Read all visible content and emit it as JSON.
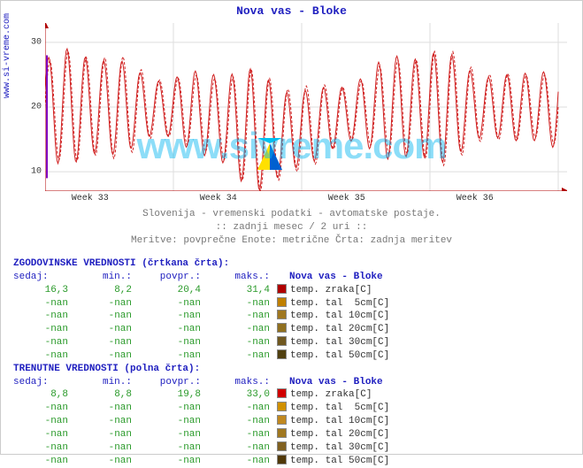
{
  "title": "Nova vas - Bloke",
  "ylabel_link": "www.si-vreme.com",
  "watermark": "www.sivreme.com",
  "subcaption_line1": "Slovenija - vremenski podatki - avtomatske postaje.",
  "subcaption_line2": ":: zadnji mesec / 2 uri ::",
  "subcaption_line3": "Meritve: povprečne  Enote: metrične  Črta: zadnja meritev",
  "chart": {
    "background": "#ffffff",
    "grid_color": "#dddddd",
    "axis_color": "#b00000",
    "series_color": "#d02020",
    "current_marker_color": "#8000c0",
    "ylim": [
      7,
      33
    ],
    "yticks": [
      10,
      20,
      30
    ],
    "xticks": [
      "Week 33",
      "Week 34",
      "Week 35",
      "Week 36"
    ],
    "n_cycles": 28,
    "amp_base": 8.5,
    "mid_base": 20,
    "mid_dip_center": 0.45,
    "mid_dip_depth": 4
  },
  "columns": {
    "sedaj": "sedaj:",
    "min": "min.:",
    "povpr": "povpr.:",
    "maks": "maks.:"
  },
  "hist_header": "ZGODOVINSKE VREDNOSTI (črtkana črta):",
  "hist_station": "Nova vas - Bloke",
  "hist_rows": [
    {
      "sedaj": "16,3",
      "min": "8,2",
      "povpr": "20,4",
      "maks": "31,4",
      "swatch": "#b00000",
      "name": "temp. zraka[C]"
    },
    {
      "sedaj": "-nan",
      "min": "-nan",
      "povpr": "-nan",
      "maks": "-nan",
      "swatch": "#c08000",
      "name": "temp. tal  5cm[C]"
    },
    {
      "sedaj": "-nan",
      "min": "-nan",
      "povpr": "-nan",
      "maks": "-nan",
      "swatch": "#a07820",
      "name": "temp. tal 10cm[C]"
    },
    {
      "sedaj": "-nan",
      "min": "-nan",
      "povpr": "-nan",
      "maks": "-nan",
      "swatch": "#907020",
      "name": "temp. tal 20cm[C]"
    },
    {
      "sedaj": "-nan",
      "min": "-nan",
      "povpr": "-nan",
      "maks": "-nan",
      "swatch": "#705820",
      "name": "temp. tal 30cm[C]"
    },
    {
      "sedaj": "-nan",
      "min": "-nan",
      "povpr": "-nan",
      "maks": "-nan",
      "swatch": "#504010",
      "name": "temp. tal 50cm[C]"
    }
  ],
  "curr_header": "TRENUTNE VREDNOSTI (polna črta):",
  "curr_station": "Nova vas - Bloke",
  "curr_rows": [
    {
      "sedaj": "8,8",
      "min": "8,8",
      "povpr": "19,8",
      "maks": "33,0",
      "swatch": "#d00000",
      "name": "temp. zraka[C]"
    },
    {
      "sedaj": "-nan",
      "min": "-nan",
      "povpr": "-nan",
      "maks": "-nan",
      "swatch": "#d09000",
      "name": "temp. tal  5cm[C]"
    },
    {
      "sedaj": "-nan",
      "min": "-nan",
      "povpr": "-nan",
      "maks": "-nan",
      "swatch": "#c08820",
      "name": "temp. tal 10cm[C]"
    },
    {
      "sedaj": "-nan",
      "min": "-nan",
      "povpr": "-nan",
      "maks": "-nan",
      "swatch": "#a07820",
      "name": "temp. tal 20cm[C]"
    },
    {
      "sedaj": "-nan",
      "min": "-nan",
      "povpr": "-nan",
      "maks": "-nan",
      "swatch": "#806020",
      "name": "temp. tal 30cm[C]"
    },
    {
      "sedaj": "-nan",
      "min": "-nan",
      "povpr": "-nan",
      "maks": "-nan",
      "swatch": "#503808",
      "name": "temp. tal 50cm[C]"
    }
  ],
  "col_widths": {
    "sedaj": 62,
    "min": 72,
    "povpr": 78,
    "maks": 78
  }
}
